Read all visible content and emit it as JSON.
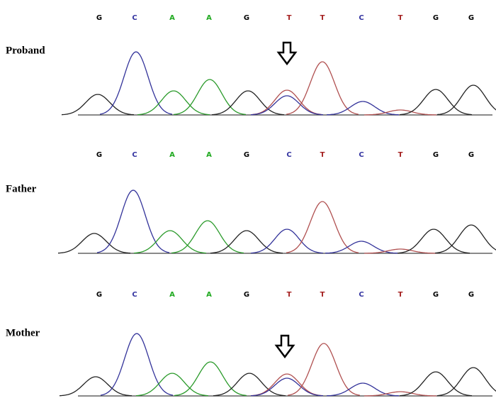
{
  "panels": [
    {
      "label": "Proband",
      "bases": [
        "G",
        "C",
        "A",
        "A",
        "G",
        "T",
        "T",
        "C",
        "T",
        "G",
        "G"
      ]
    },
    {
      "label": "Father",
      "bases": [
        "G",
        "C",
        "A",
        "A",
        "G",
        "C",
        "T",
        "C",
        "T",
        "G",
        "G"
      ]
    },
    {
      "label": "Mother",
      "bases": [
        "G",
        "C",
        "A",
        "A",
        "G",
        "T",
        "T",
        "C",
        "T",
        "G",
        "G"
      ]
    }
  ]
}
